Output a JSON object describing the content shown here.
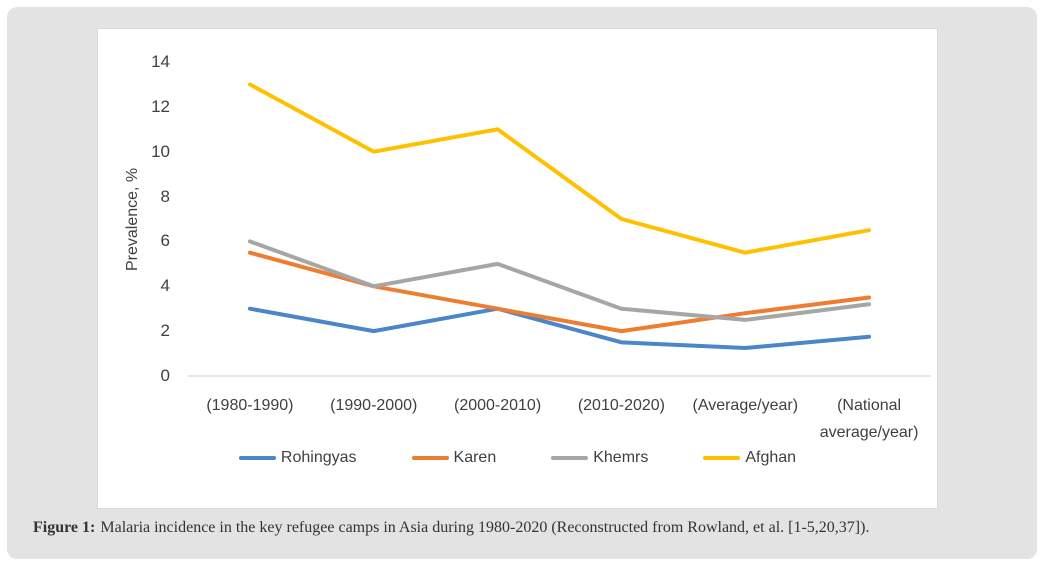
{
  "chart_data": {
    "type": "line",
    "categories": [
      "(1980-1990)",
      "(1990-2000)",
      "(2000-2010)",
      "(2010-2020)",
      "(Average/year)",
      "(National average/year)"
    ],
    "series": [
      {
        "name": "Rohingyas",
        "color": "#4A86C8",
        "values": [
          3,
          2,
          3,
          1.5,
          1.25,
          1.75
        ]
      },
      {
        "name": "Karen",
        "color": "#ED7D31",
        "values": [
          5.5,
          4,
          3,
          2,
          2.8,
          3.5
        ]
      },
      {
        "name": "Khemrs",
        "color": "#A6A6A6",
        "values": [
          6,
          4,
          5,
          3,
          2.5,
          3.2
        ]
      },
      {
        "name": "Afghan",
        "color": "#FFC000",
        "values": [
          13,
          10,
          11,
          7,
          5.5,
          6.5
        ]
      }
    ],
    "title": "",
    "xlabel": "",
    "ylabel": "Prevalence, %",
    "yticks": [
      0,
      2,
      4,
      6,
      8,
      10,
      12,
      14
    ],
    "ylim": [
      0,
      14
    ],
    "grid": false,
    "legend_position": "bottom",
    "axis_line_color": "#d9d9d9"
  },
  "caption": {
    "label": "Figure 1:",
    "text": "Malaria incidence in the key refugee camps in Asia during 1980-2020 (Reconstructed from Rowland, et al. [1-5,20,37])."
  },
  "colors": {
    "panel_background": "#e3e3e3",
    "card_background": "#ffffff",
    "card_border": "#d9d9d9",
    "axis_text": "#404040"
  }
}
